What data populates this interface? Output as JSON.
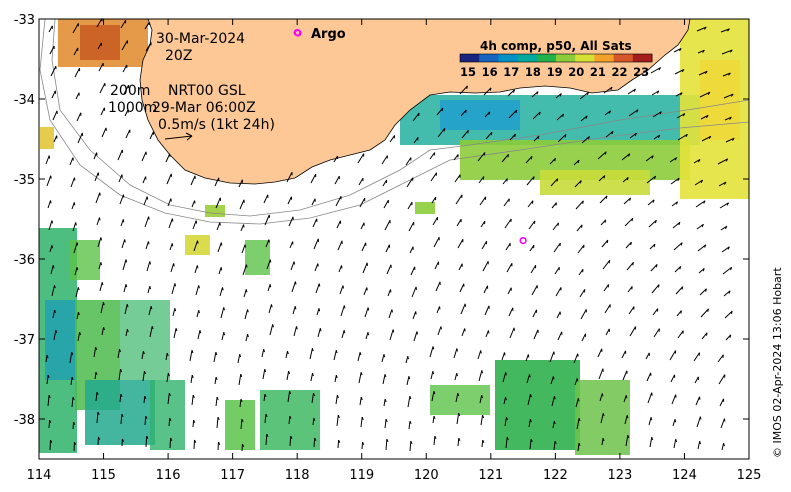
{
  "map": {
    "date_label": "30-Mar-2024",
    "hour_label": "20Z",
    "contour_label_200": "200m",
    "contour_label_1000": "1000m",
    "current_product": "NRT00 GSL",
    "current_time": "29-Mar 06:00Z",
    "scale_arrow_label": "0.5m/s (1kt 24h)",
    "argo_label": "Argo",
    "credit": "© IMOS 02-Apr-2024 13:06 Hobart",
    "x_axis": {
      "ticks": [
        "114",
        "115",
        "116",
        "117",
        "118",
        "119",
        "120",
        "121",
        "122",
        "123",
        "124",
        "125"
      ],
      "range": [
        114,
        125
      ]
    },
    "y_axis": {
      "ticks": [
        "-33",
        "-34",
        "-35",
        "-36",
        "-37",
        "-38"
      ],
      "range": [
        -38.5,
        -33
      ]
    },
    "argo_floats": [
      {
        "lon": 118.0,
        "lat": -33.17
      },
      {
        "lon": 121.5,
        "lat": -35.77
      }
    ],
    "colors": {
      "land": "#fdc896",
      "argo": "#ff00ff",
      "ocean": "#ffffff"
    }
  },
  "legend": {
    "title": "4h comp, p50, All Sats",
    "ticks": [
      "15",
      "16",
      "17",
      "18",
      "19",
      "20",
      "21",
      "22",
      "23"
    ],
    "range": [
      15,
      23.5
    ],
    "colors": [
      "#1a237e",
      "#1565c0",
      "#0091c7",
      "#00a99d",
      "#22b24c",
      "#8ccc3a",
      "#d6e034",
      "#f2a22a",
      "#d8572a",
      "#a51d1d"
    ]
  }
}
